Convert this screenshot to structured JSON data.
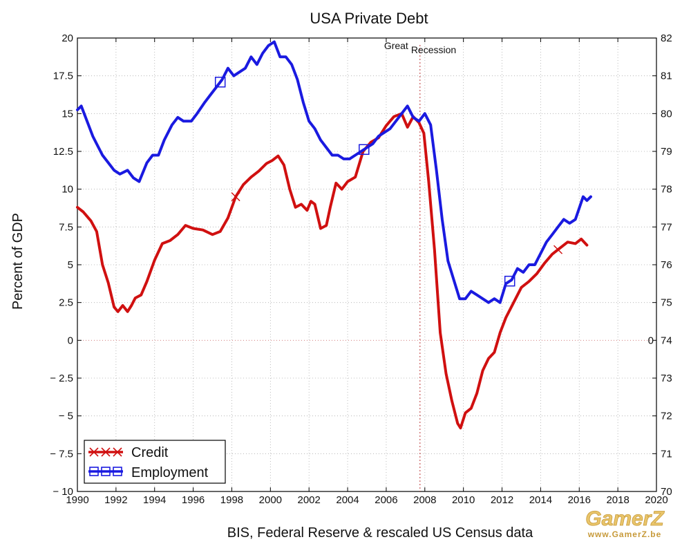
{
  "title": "USA Private Debt",
  "ylabel": "Percent of GDP",
  "caption": "BIS, Federal Reserve & rescaled US Census data",
  "watermark": {
    "logo": "GamerZ",
    "url": "www.GamerZ.be"
  },
  "annotation": {
    "text_a": "Great",
    "text_b": "Recession",
    "x": 2007.75
  },
  "legend": {
    "items": [
      {
        "label": "Credit",
        "color": "#d01010",
        "marker": "x"
      },
      {
        "label": "Employment",
        "color": "#1a1ae0",
        "marker": "square"
      }
    ]
  },
  "chart_data": {
    "type": "line",
    "title": "USA Private Debt",
    "xlabel": "",
    "ylabel": "Percent of GDP",
    "xlim": [
      1990,
      2020
    ],
    "ylim": [
      -10,
      20
    ],
    "y2lim": [
      70,
      82
    ],
    "grid": true,
    "legend_position": "bottom-left",
    "x_ticks": [
      1990,
      1992,
      1994,
      1996,
      1998,
      2000,
      2002,
      2004,
      2006,
      2008,
      2010,
      2012,
      2014,
      2016,
      2018,
      2020
    ],
    "y_ticks": [
      -10,
      -7.5,
      -5,
      -2.5,
      0,
      2.5,
      5,
      7.5,
      10,
      12.5,
      15,
      17.5,
      20
    ],
    "y_tick_labels": [
      "− 10",
      "− 7.5",
      "− 5",
      "− 2.5",
      "0",
      "2.5",
      "5",
      "7.5",
      "10",
      "12.5",
      "15",
      "17.5",
      "20"
    ],
    "y2_ticks": [
      70,
      71,
      72,
      73,
      74,
      75,
      76,
      77,
      78,
      79,
      80,
      81,
      82
    ],
    "y2_tick_labels": [
      "70",
      "71",
      "72",
      "73",
      "74",
      "75",
      "76",
      "77",
      "78",
      "79",
      "80",
      "81",
      "82"
    ],
    "y_zero_label_right": "0",
    "series": [
      {
        "name": "Credit",
        "axis": "left",
        "color": "#d01010",
        "marker": "x",
        "marker_x": [
          1998.2,
          2014.9
        ],
        "x": [
          1990,
          1990.3,
          1990.7,
          1991.0,
          1991.3,
          1991.6,
          1991.9,
          1992.1,
          1992.35,
          1992.6,
          1992.8,
          1993.0,
          1993.3,
          1993.6,
          1994.0,
          1994.4,
          1994.8,
          1995.2,
          1995.6,
          1996.0,
          1996.5,
          1997.0,
          1997.4,
          1997.8,
          1998.2,
          1998.6,
          1999.0,
          1999.4,
          1999.8,
          2000.1,
          2000.4,
          2000.7,
          2001.0,
          2001.3,
          2001.6,
          2001.9,
          2002.1,
          2002.3,
          2002.6,
          2002.9,
          2003.1,
          2003.4,
          2003.7,
          2004.0,
          2004.4,
          2004.8,
          2005.2,
          2005.6,
          2006.0,
          2006.4,
          2006.8,
          2007.1,
          2007.4,
          2007.7,
          2007.95,
          2008.2,
          2008.5,
          2008.8,
          2009.1,
          2009.4,
          2009.7,
          2009.85,
          2010.1,
          2010.4,
          2010.7,
          2011.0,
          2011.3,
          2011.6,
          2011.9,
          2012.2,
          2012.6,
          2013.0,
          2013.4,
          2013.8,
          2014.2,
          2014.6,
          2015.0,
          2015.4,
          2015.8,
          2016.1,
          2016.4
        ],
        "values": [
          8.8,
          8.5,
          7.9,
          7.2,
          5.0,
          3.8,
          2.2,
          1.9,
          2.3,
          1.9,
          2.3,
          2.8,
          3.0,
          3.9,
          5.3,
          6.4,
          6.6,
          7.0,
          7.6,
          7.4,
          7.3,
          7.0,
          7.2,
          8.1,
          9.5,
          10.3,
          10.8,
          11.2,
          11.7,
          11.9,
          12.2,
          11.6,
          10.0,
          8.8,
          9.0,
          8.6,
          9.2,
          9.0,
          7.4,
          7.6,
          8.8,
          10.4,
          10.0,
          10.5,
          10.8,
          12.5,
          13.1,
          13.4,
          14.2,
          14.8,
          15.0,
          14.1,
          14.8,
          14.4,
          13.7,
          10.5,
          6.0,
          0.5,
          -2.2,
          -4.0,
          -5.5,
          -5.8,
          -4.8,
          -4.5,
          -3.5,
          -2.0,
          -1.2,
          -0.8,
          0.5,
          1.5,
          2.5,
          3.5,
          3.9,
          4.4,
          5.1,
          5.7,
          6.1,
          6.5,
          6.4,
          6.7,
          6.3
        ]
      },
      {
        "name": "Employment",
        "axis": "right",
        "color": "#1a1ae0",
        "marker": "square",
        "marker_x": [
          1997.4,
          2004.85,
          2012.4
        ],
        "x": [
          1990,
          1990.2,
          1990.5,
          1990.8,
          1991.0,
          1991.3,
          1991.6,
          1991.9,
          1992.2,
          1992.6,
          1992.9,
          1993.2,
          1993.6,
          1993.9,
          1994.2,
          1994.5,
          1994.9,
          1995.2,
          1995.5,
          1995.9,
          1996.2,
          1996.6,
          1996.9,
          1997.2,
          1997.5,
          1997.8,
          1998.1,
          1998.4,
          1998.7,
          1999.0,
          1999.3,
          1999.6,
          1999.9,
          2000.2,
          2000.5,
          2000.8,
          2001.1,
          2001.4,
          2001.7,
          2002.0,
          2002.3,
          2002.6,
          2002.9,
          2003.2,
          2003.5,
          2003.8,
          2004.1,
          2004.4,
          2004.7,
          2005.0,
          2005.3,
          2005.6,
          2005.9,
          2006.2,
          2006.5,
          2006.8,
          2007.1,
          2007.4,
          2007.7,
          2008.0,
          2008.3,
          2008.6,
          2008.9,
          2009.2,
          2009.5,
          2009.8,
          2010.1,
          2010.4,
          2010.7,
          2011.0,
          2011.3,
          2011.6,
          2011.9,
          2012.2,
          2012.5,
          2012.8,
          2013.1,
          2013.4,
          2013.7,
          2014.0,
          2014.3,
          2014.6,
          2014.9,
          2015.2,
          2015.5,
          2015.8,
          2016.0,
          2016.2,
          2016.4,
          2016.6
        ],
        "values": [
          80.1,
          80.2,
          79.8,
          79.4,
          79.2,
          78.9,
          78.7,
          78.5,
          78.4,
          78.5,
          78.3,
          78.2,
          78.7,
          78.9,
          78.9,
          79.3,
          79.7,
          79.9,
          79.8,
          79.8,
          80.0,
          80.3,
          80.5,
          80.7,
          80.9,
          81.2,
          81.0,
          81.1,
          81.2,
          81.5,
          81.3,
          81.6,
          81.8,
          81.9,
          81.5,
          81.5,
          81.3,
          80.9,
          80.3,
          79.8,
          79.6,
          79.3,
          79.1,
          78.9,
          78.9,
          78.8,
          78.8,
          78.9,
          79.0,
          79.1,
          79.2,
          79.4,
          79.5,
          79.6,
          79.8,
          80.0,
          80.2,
          79.9,
          79.8,
          80.0,
          79.7,
          78.5,
          77.2,
          76.1,
          75.6,
          75.1,
          75.1,
          75.3,
          75.2,
          75.1,
          75.0,
          75.1,
          75.0,
          75.5,
          75.6,
          75.9,
          75.8,
          76.0,
          76.0,
          76.3,
          76.6,
          76.8,
          77.0,
          77.2,
          77.1,
          77.2,
          77.5,
          77.8,
          77.7,
          77.8
        ]
      }
    ]
  }
}
